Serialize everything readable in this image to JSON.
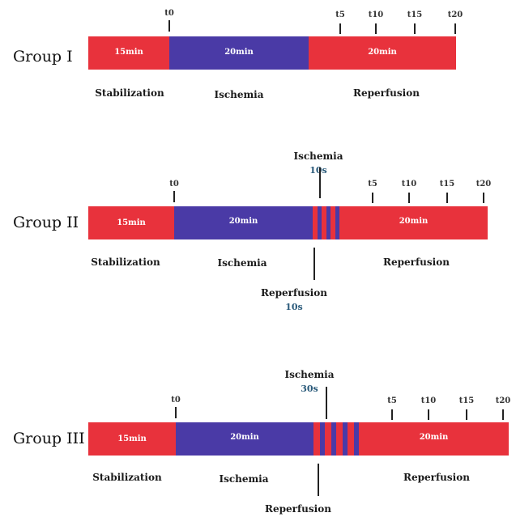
{
  "colors": {
    "stabilization": "#e8323c",
    "ischemia": "#4a3aa6",
    "reperfusion": "#e8323c"
  },
  "groups": [
    {
      "name": "Group I",
      "segments": {
        "stabilization": "15min",
        "ischemia": "20min",
        "reperfusion": "20min"
      },
      "phases": {
        "stabilization": "Stabilization",
        "ischemia": "Ischemia",
        "reperfusion": "Reperfusion"
      },
      "ticks": [
        "t0",
        "t5",
        "t10",
        "t15",
        "t20"
      ]
    },
    {
      "name": "Group II",
      "segments": {
        "stabilization": "15min",
        "ischemia": "20min",
        "reperfusion": "20min"
      },
      "phases": {
        "stabilization": "Stabilization",
        "ischemia": "Ischemia",
        "reperfusion": "Reperfusion"
      },
      "ticks": [
        "t0",
        "t5",
        "t10",
        "t15",
        "t20"
      ],
      "cycle_notes": {
        "ischemia_label": "Ischemia",
        "ischemia_dur": "10s",
        "reperfusion_label": "Reperfusion",
        "reperfusion_dur": "10s"
      }
    },
    {
      "name": "Group III",
      "segments": {
        "stabilization": "15min",
        "ischemia": "20min",
        "reperfusion": "20min"
      },
      "phases": {
        "stabilization": "Stabilization",
        "ischemia": "Ischemia",
        "reperfusion": "Reperfusion"
      },
      "ticks": [
        "t0",
        "t5",
        "t10",
        "t15",
        "t20"
      ],
      "cycle_notes": {
        "ischemia_label": "Ischemia",
        "ischemia_dur": "30s",
        "reperfusion_label": "Reperfusion"
      }
    }
  ]
}
